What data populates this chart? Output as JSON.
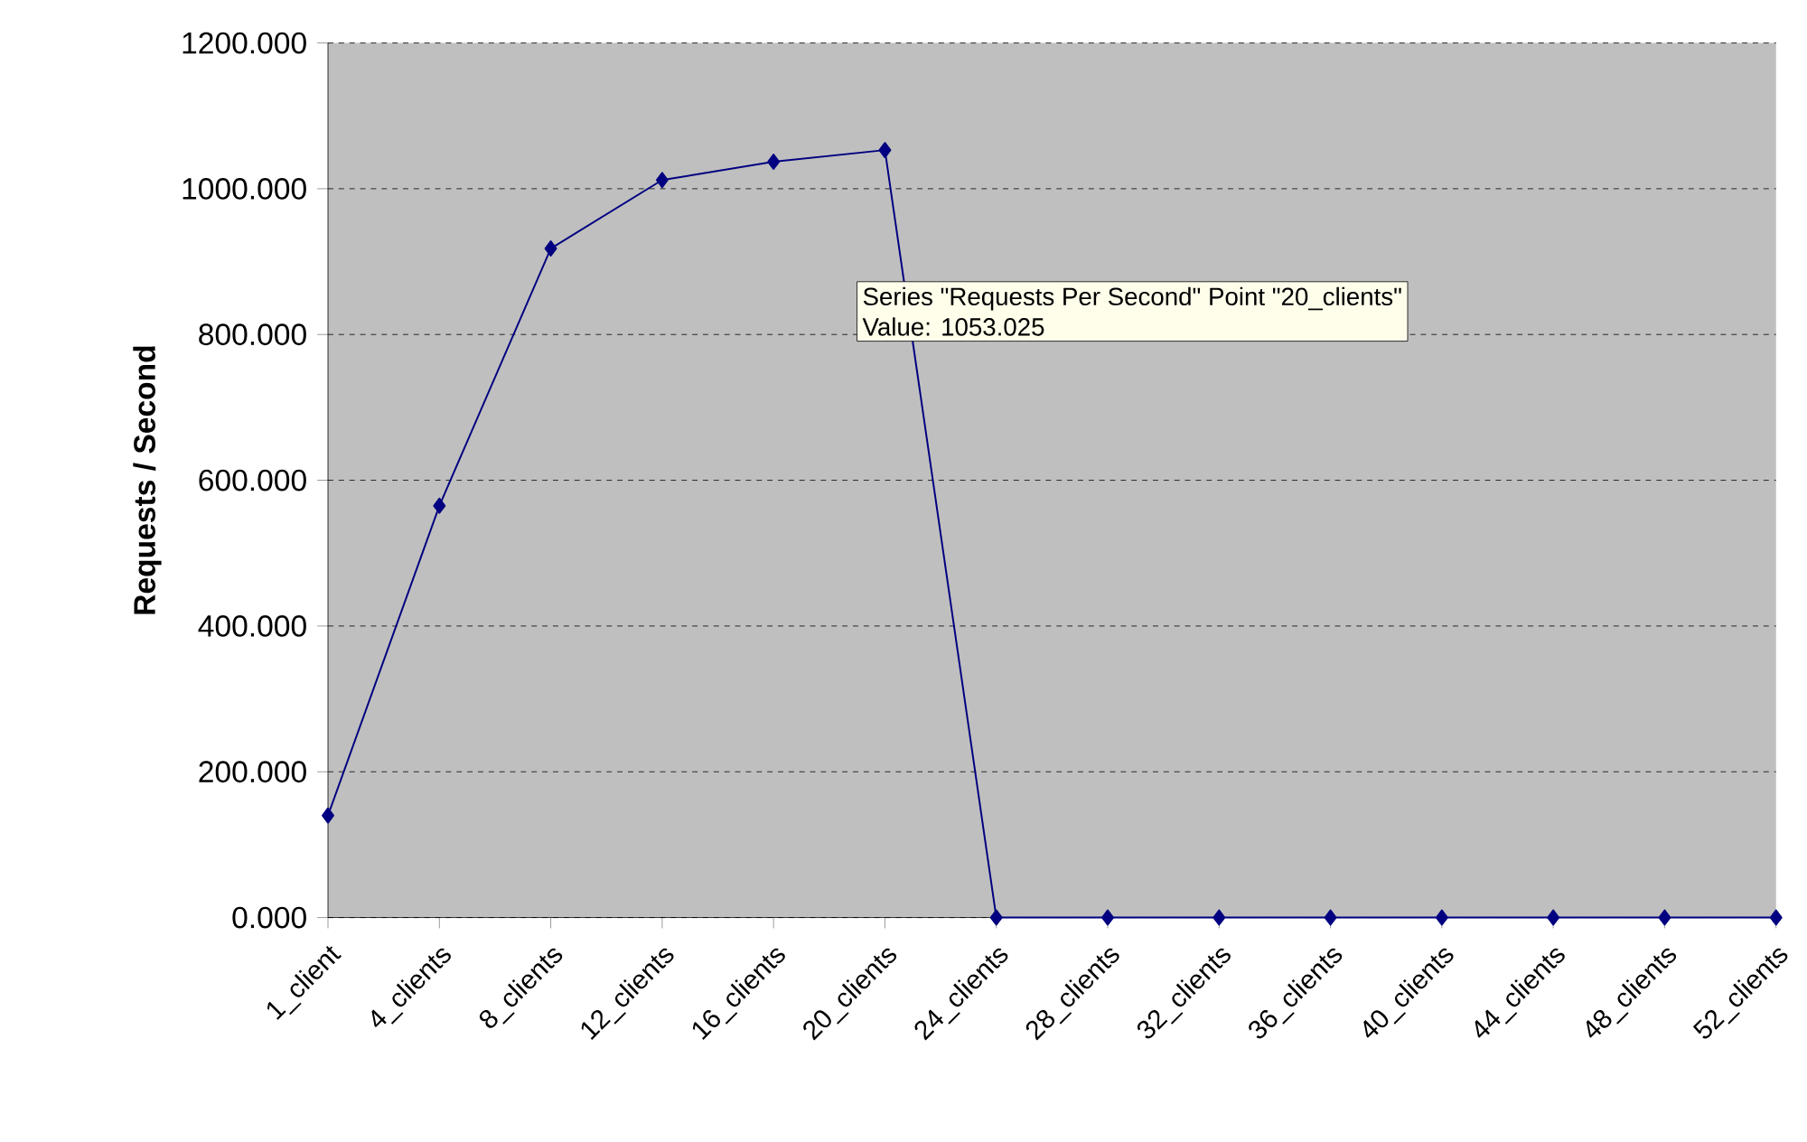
{
  "chart_data": {
    "type": "line",
    "ylabel": "Requests / Second",
    "categories": [
      "1_client",
      "4_clients",
      "8_clients",
      "12_clients",
      "16_clients",
      "20_clients",
      "24_clients",
      "28_clients",
      "32_clients",
      "36_clients",
      "40_clients",
      "44_clients",
      "48_clients",
      "52_clients"
    ],
    "values": [
      140,
      565,
      918,
      1012,
      1037,
      1053.025,
      0,
      0,
      0,
      0,
      0,
      0,
      0,
      0
    ],
    "color": "#000080",
    "marker": "diamond",
    "line_style": "solid",
    "grid": "y",
    "ylim": [
      0,
      1200
    ],
    "yticks": [
      {
        "value": 0,
        "label": "0.000"
      },
      {
        "value": 200,
        "label": "200.000"
      },
      {
        "value": 400,
        "label": "400.000"
      },
      {
        "value": 600,
        "label": "600.000"
      },
      {
        "value": 800,
        "label": "800.000"
      },
      {
        "value": 1000,
        "label": "1000.000"
      },
      {
        "value": 1200,
        "label": "1200.000"
      }
    ],
    "annotations": [
      "Series \"Requests Per Second\" Point \"20_clients\"",
      "Value: 1053.025"
    ]
  }
}
